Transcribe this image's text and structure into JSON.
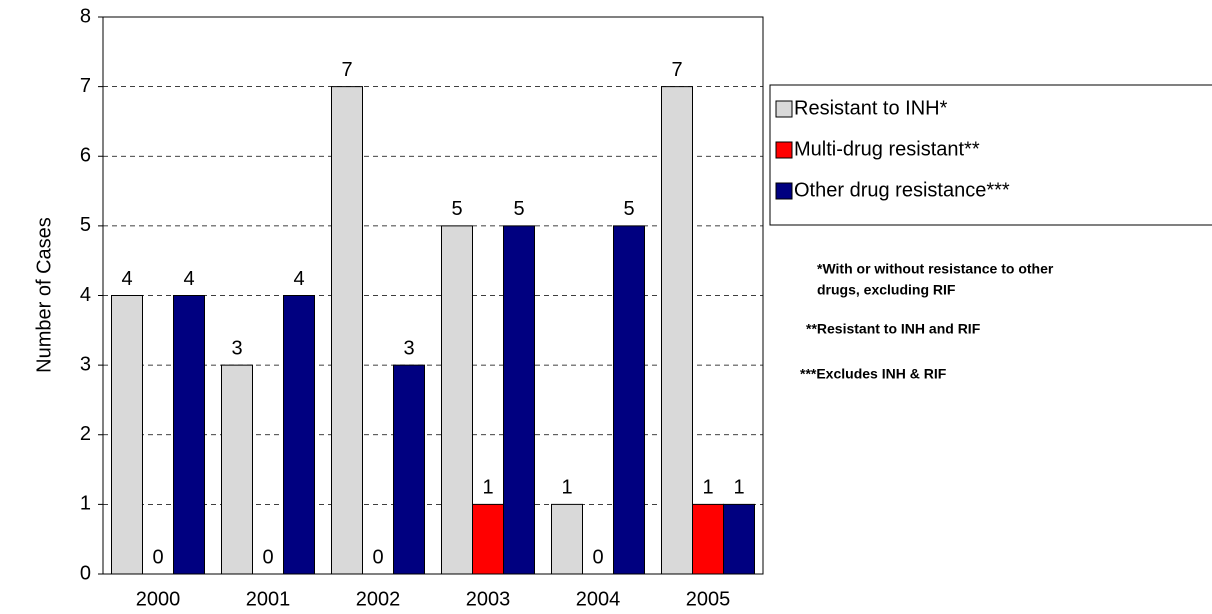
{
  "chart_data": {
    "type": "bar",
    "y_label": "Number of Cases",
    "categories": [
      "2000",
      "2001",
      "2002",
      "2003",
      "2004",
      "2005"
    ],
    "series": [
      {
        "name": "Resistant to INH*",
        "color": "#d9d9d9",
        "values": [
          4,
          3,
          7,
          5,
          1,
          7
        ]
      },
      {
        "name": "Multi-drug resistant**",
        "color": "#ff0000",
        "values": [
          0,
          0,
          0,
          1,
          0,
          1
        ]
      },
      {
        "name": "Other drug resistance***",
        "color": "#000080",
        "values": [
          4,
          4,
          3,
          5,
          5,
          1
        ]
      }
    ],
    "ylim": [
      0,
      8
    ],
    "yticks": [
      0,
      1,
      2,
      3,
      4,
      5,
      6,
      7,
      8
    ],
    "grid": true,
    "notes": [
      "*With or without resistance to other",
      "drugs, excluding RIF",
      "**Resistant to INH and RIF",
      "***Excludes INH & RIF"
    ]
  }
}
